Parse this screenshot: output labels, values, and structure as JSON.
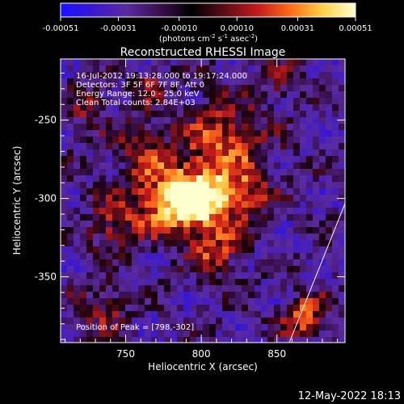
{
  "colorbar": {
    "tick_labels": [
      "-0.00051",
      "-0.00031",
      "-0.00010",
      "0.00010",
      "0.00031",
      "0.00051"
    ],
    "tick_values": [
      -0.00051,
      -0.00031,
      -0.0001,
      0.0001,
      0.00031,
      0.00051
    ],
    "units_prefix": "(photons cm",
    "units_exp1": "-2",
    "units_mid1": " s",
    "units_exp2": "-1",
    "units_mid2": " asec",
    "units_exp3": "-2",
    "units_suffix": ")",
    "colors": [
      "#1a10ff",
      "#3a18d0",
      "#5a2aa0",
      "#3b1050",
      "#000000",
      "#5a0d18",
      "#c21a1a",
      "#ff6a1a",
      "#ffd24a",
      "#ffffd0"
    ]
  },
  "plot": {
    "title": "Reconstructed RHESSI Image",
    "xlabel": "Heliocentric X (arcsec)",
    "ylabel": "Heliocentric Y (arcsec)",
    "xticks": [
      "750",
      "800",
      "850"
    ],
    "xtick_values": [
      750,
      800,
      850
    ],
    "yticks": [
      "-250",
      "-300",
      "-350"
    ],
    "ytick_values": [
      -250,
      -300,
      -350
    ],
    "xlim": [
      707,
      895
    ],
    "ylim": [
      -392,
      -211
    ],
    "info_lines": [
      "16-Jul-2012 19:13:28.000 to 19:17:24.000",
      "Detectors: 3F 5F 6F 7F 8F, Att 0",
      "Energy Range: 12.0 - 25.0 keV",
      "Clean    Total counts: 2.84E+03"
    ],
    "peak_label": "Position of Peak = [798,-302]",
    "peak": [
      798,
      -302
    ]
  },
  "footer": {
    "timestamp": "12-May-2022 18:13"
  }
}
